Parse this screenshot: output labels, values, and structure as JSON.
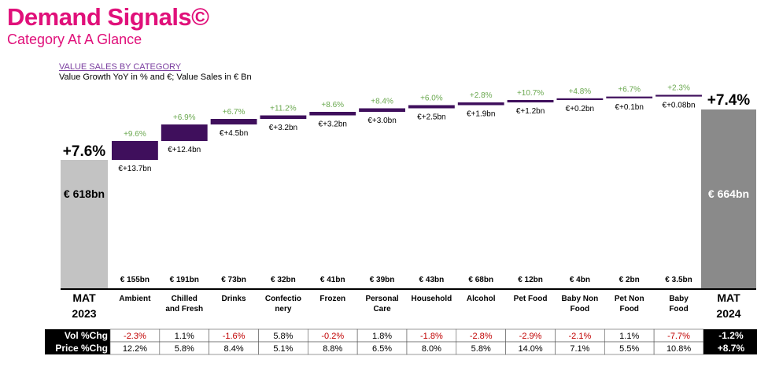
{
  "brand": {
    "title": "Demand Signals©",
    "subtitle": "Category At A Glance"
  },
  "chart": {
    "title": "VALUE SALES BY CATEGORY",
    "subtitle": "Value Growth YoY in % and €; Value Sales in € Bn"
  },
  "colors": {
    "brand": "#e0107a",
    "purple": "#3f0f5c",
    "growth_green": "#6aa84f",
    "start_bar": "#c3c3c3",
    "end_bar": "#8a8a8a",
    "negative_red": "#c00000"
  },
  "chart_data": {
    "type": "bar",
    "start": {
      "label": "MAT 2023",
      "value": 618,
      "value_label": "€ 618bn",
      "growth": "+7.6%"
    },
    "end": {
      "label": "MAT 2024",
      "value": 664,
      "value_label": "€ 664bn",
      "growth": "+7.4%"
    },
    "categories": [
      "Ambient",
      "Chilled and Fresh",
      "Drinks",
      "Confectio nery",
      "Frozen",
      "Personal Care",
      "Household",
      "Alcohol",
      "Pet Food",
      "Baby Non Food",
      "Pet Non Food",
      "Baby Food"
    ],
    "category_lines": [
      [
        "Ambient"
      ],
      [
        "Chilled",
        "and Fresh"
      ],
      [
        "Drinks"
      ],
      [
        "Confectio",
        "nery"
      ],
      [
        "Frozen"
      ],
      [
        "Personal",
        "Care"
      ],
      [
        "Household"
      ],
      [
        "Alcohol"
      ],
      [
        "Pet Food"
      ],
      [
        "Baby Non",
        "Food"
      ],
      [
        "Pet Non",
        "Food"
      ],
      [
        "Baby",
        "Food"
      ]
    ],
    "increments": [
      13.7,
      12.4,
      4.5,
      3.2,
      3.2,
      3.0,
      2.5,
      1.9,
      1.2,
      0.2,
      0.1,
      0.08
    ],
    "increment_labels": [
      "€+13.7bn",
      "€+12.4bn",
      "€+4.5bn",
      "€+3.2bn",
      "€+3.2bn",
      "€+3.0bn",
      "€+2.5bn",
      "€+1.9bn",
      "€+1.2bn",
      "€+0.2bn",
      "€+0.1bn",
      "€+0.08bn"
    ],
    "growth": [
      "+9.6%",
      "+6.9%",
      "+6.7%",
      "+11.2%",
      "+8.6%",
      "+8.4%",
      "+6.0%",
      "+2.8%",
      "+10.7%",
      "+4.8%",
      "+6.7%",
      "+2.3%"
    ],
    "value_sales": [
      "€ 155bn",
      "€ 191bn",
      "€ 73bn",
      "€ 32bn",
      "€ 41bn",
      "€ 39bn",
      "€ 43bn",
      "€ 68bn",
      "€ 12bn",
      "€ 4bn",
      "€ 2bn",
      "€ 3.5bn"
    ],
    "table": {
      "rows": [
        {
          "label": "Vol %Chg",
          "values": [
            "-2.3%",
            "1.1%",
            "-1.6%",
            "5.8%",
            "-0.2%",
            "1.8%",
            "-1.8%",
            "-2.8%",
            "-2.9%",
            "-2.1%",
            "1.1%",
            "-7.7%"
          ],
          "total": "-1.2%"
        },
        {
          "label": "Price %Chg",
          "values": [
            "12.2%",
            "5.8%",
            "8.4%",
            "5.1%",
            "8.8%",
            "6.5%",
            "8.0%",
            "5.8%",
            "14.0%",
            "7.1%",
            "5.5%",
            "10.8%"
          ],
          "total": "+8.7%"
        }
      ]
    }
  }
}
